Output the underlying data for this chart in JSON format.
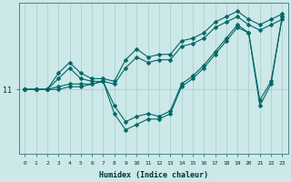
{
  "xlabel": "Humidex (Indice chaleur)",
  "bg_color": "#cce8e8",
  "grid_color": "#aacaca",
  "line_color": "#006666",
  "ytick_label": "11",
  "ytick_val": 11.0,
  "line1_x": [
    0,
    1,
    2,
    3,
    4,
    5,
    6,
    7,
    8,
    9,
    10,
    11,
    12,
    13,
    14,
    15,
    16,
    17,
    18,
    19,
    20,
    21,
    22,
    23
  ],
  "line1_y": [
    11.0,
    11.0,
    11.0,
    11.3,
    11.5,
    11.3,
    11.2,
    11.2,
    11.15,
    11.55,
    11.75,
    11.6,
    11.65,
    11.65,
    11.9,
    11.95,
    12.05,
    12.25,
    12.35,
    12.45,
    12.3,
    12.2,
    12.3,
    12.4
  ],
  "line2_x": [
    0,
    1,
    2,
    3,
    4,
    5,
    6,
    7,
    8,
    9,
    10,
    11,
    12,
    13,
    14,
    15,
    16,
    17,
    18,
    19,
    20,
    21,
    22,
    23
  ],
  "line2_y": [
    11.0,
    11.0,
    11.0,
    11.2,
    11.4,
    11.2,
    11.15,
    11.15,
    11.1,
    11.4,
    11.6,
    11.5,
    11.55,
    11.55,
    11.8,
    11.85,
    11.95,
    12.15,
    12.25,
    12.35,
    12.2,
    12.1,
    12.2,
    12.3
  ],
  "line3_x": [
    0,
    1,
    2,
    3,
    4,
    5,
    6,
    7,
    8,
    9,
    10,
    11,
    12,
    13,
    14,
    15,
    16,
    17,
    18,
    19,
    20,
    21,
    22,
    23
  ],
  "line3_y": [
    11.0,
    11.0,
    11.0,
    11.0,
    11.05,
    11.05,
    11.1,
    11.15,
    10.55,
    10.25,
    10.35,
    10.45,
    10.45,
    10.55,
    11.05,
    11.2,
    11.4,
    11.65,
    11.9,
    12.15,
    12.05,
    10.7,
    11.1,
    12.35
  ],
  "line4_x": [
    0,
    1,
    2,
    3,
    4,
    5,
    6,
    7,
    8,
    9,
    10,
    11,
    12,
    13,
    14,
    15,
    16,
    17,
    18,
    19,
    20,
    21,
    22,
    23
  ],
  "line4_y": [
    11.0,
    11.0,
    11.0,
    11.05,
    11.1,
    11.1,
    11.1,
    11.15,
    10.7,
    10.4,
    10.5,
    10.55,
    10.5,
    10.6,
    11.1,
    11.25,
    11.45,
    11.7,
    11.95,
    12.2,
    12.05,
    10.8,
    11.15,
    12.35
  ],
  "ylim": [
    9.8,
    12.6
  ],
  "markersize": 2.5,
  "linewidth": 0.8
}
